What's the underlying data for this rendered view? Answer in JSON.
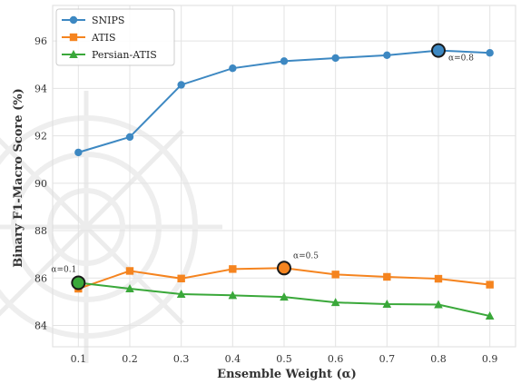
{
  "chart_data": {
    "type": "line",
    "xlabel": "Ensemble Weight (α)",
    "ylabel": "Binary F1-Macro Score (%)",
    "x": [
      0.1,
      0.2,
      0.3,
      0.4,
      0.5,
      0.6,
      0.7,
      0.8,
      0.9
    ],
    "xticks": [
      "0.1",
      "0.2",
      "0.3",
      "0.4",
      "0.5",
      "0.6",
      "0.7",
      "0.8",
      "0.9"
    ],
    "yticks": [
      "84",
      "86",
      "88",
      "90",
      "92",
      "94",
      "96"
    ],
    "xlim": [
      0.05,
      0.95
    ],
    "ylim": [
      83.1,
      97.5
    ],
    "grid": true,
    "legend_position": "top-left",
    "series": [
      {
        "name": "SNIPS",
        "color": "#3d88c2",
        "marker": "circle",
        "values": [
          91.3,
          91.95,
          94.15,
          94.85,
          95.15,
          95.28,
          95.4,
          95.6,
          95.5
        ]
      },
      {
        "name": "ATIS",
        "color": "#f5841f",
        "marker": "square",
        "values": [
          85.55,
          86.3,
          85.98,
          86.38,
          86.42,
          86.15,
          86.05,
          85.97,
          85.72
        ]
      },
      {
        "name": "Persian-ATIS",
        "color": "#3aa83a",
        "marker": "triangle",
        "values": [
          85.8,
          85.55,
          85.32,
          85.27,
          85.2,
          84.97,
          84.9,
          84.88,
          84.4
        ]
      }
    ],
    "highlights": [
      {
        "series": "SNIPS",
        "x": 0.8,
        "y": 95.6,
        "label": "α=0.8"
      },
      {
        "series": "ATIS",
        "x": 0.5,
        "y": 86.42,
        "label": "α=0.5"
      },
      {
        "series": "Persian-ATIS",
        "x": 0.1,
        "y": 85.8,
        "label": "α=0.1"
      }
    ]
  }
}
